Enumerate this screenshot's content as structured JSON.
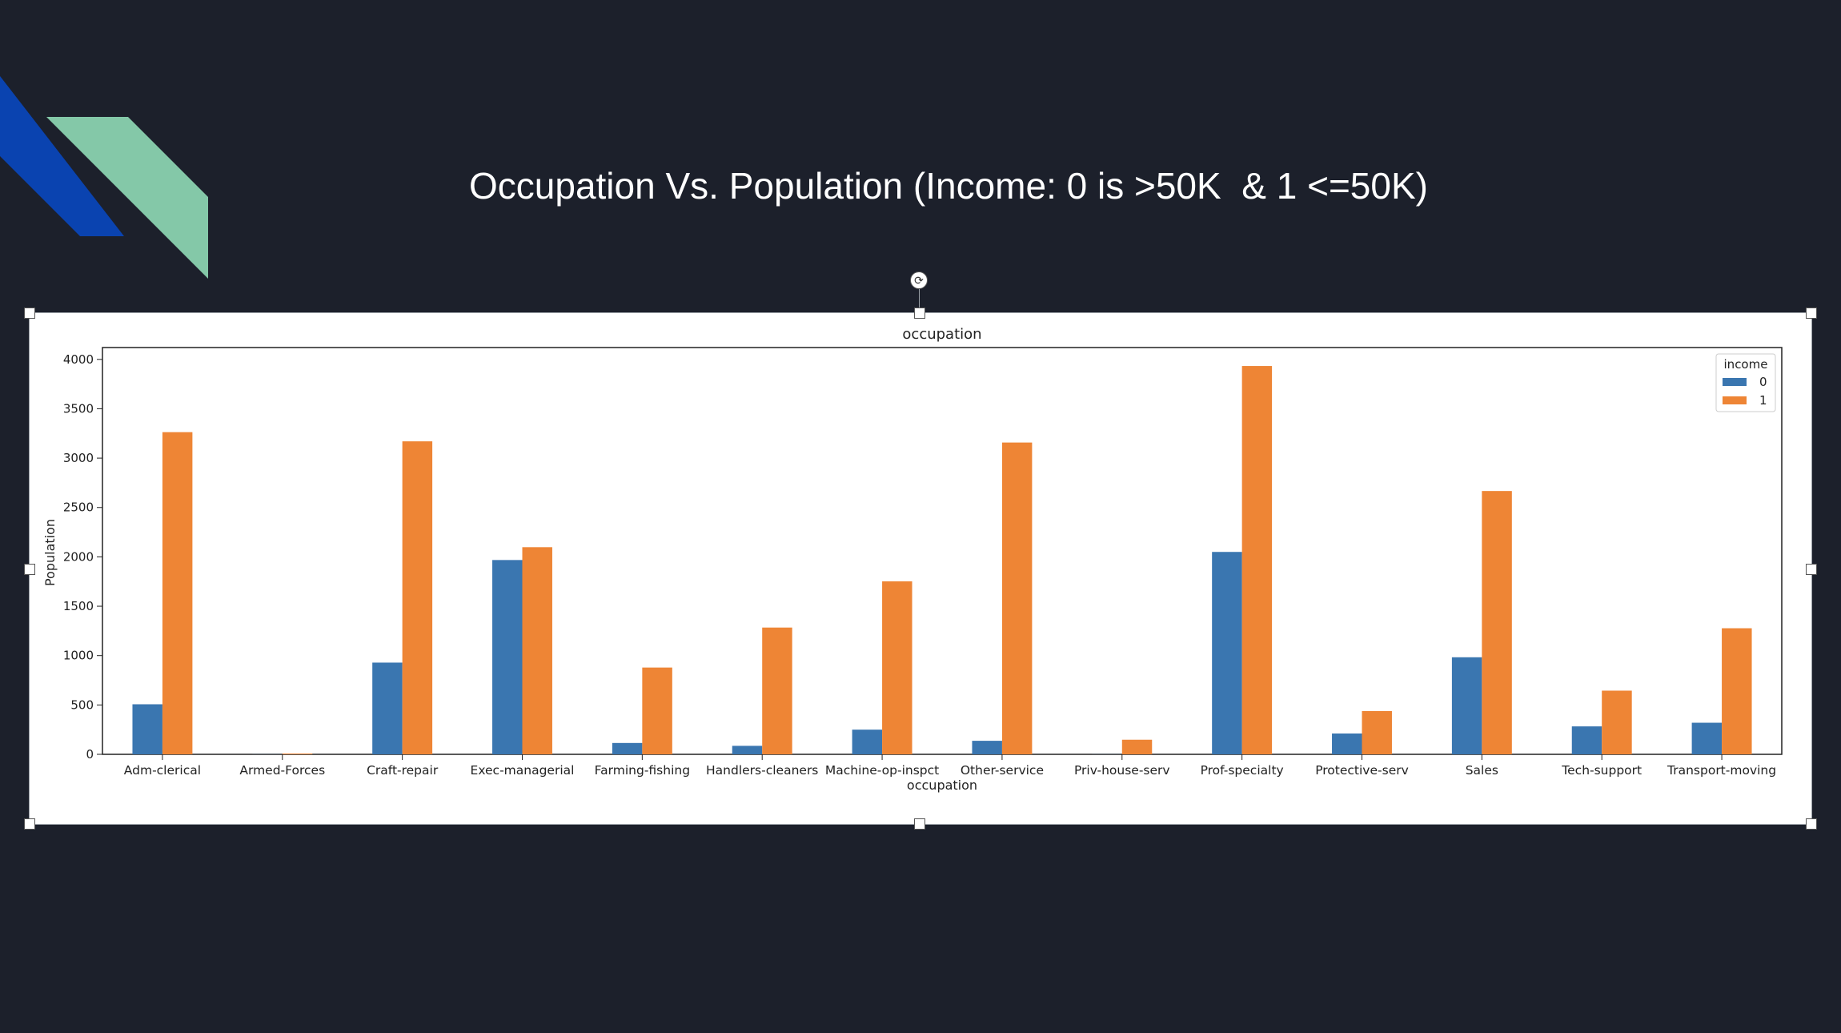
{
  "slide": {
    "title": "Occupation Vs. Population (Income: 0 is >50K  & 1 <=50K)"
  },
  "colors": {
    "background": "#1c202b",
    "deco_blue": "#0a43b0",
    "deco_green": "#84c8a8",
    "series_0": "#3a76b0",
    "series_1": "#ee8535"
  },
  "icons": {
    "rotate": "rotate-icon"
  },
  "chart_data": {
    "type": "bar",
    "title": "occupation",
    "xlabel": "occupation",
    "ylabel": "Population",
    "ylim": [
      0,
      4120
    ],
    "yticks": [
      "0",
      "500",
      "1000",
      "1500",
      "2000",
      "2500",
      "3000",
      "3500",
      "4000"
    ],
    "categories": [
      "Adm-clerical",
      "Armed-Forces",
      "Craft-repair",
      "Exec-managerial",
      "Farming-fishing",
      "Handlers-cleaners",
      "Machine-op-inspct",
      "Other-service",
      "Priv-house-serv",
      "Prof-specialty",
      "Protective-serv",
      "Sales",
      "Tech-support",
      "Transport-moving"
    ],
    "legend": {
      "title": "income",
      "position": "top-right"
    },
    "series": [
      {
        "name": "0",
        "values": [
          507,
          1,
          929,
          1968,
          115,
          86,
          250,
          137,
          1,
          2050,
          211,
          983,
          283,
          320
        ]
      },
      {
        "name": "1",
        "values": [
          3263,
          8,
          3170,
          2098,
          879,
          1284,
          1752,
          3158,
          148,
          3933,
          438,
          2667,
          645,
          1277
        ]
      }
    ]
  }
}
